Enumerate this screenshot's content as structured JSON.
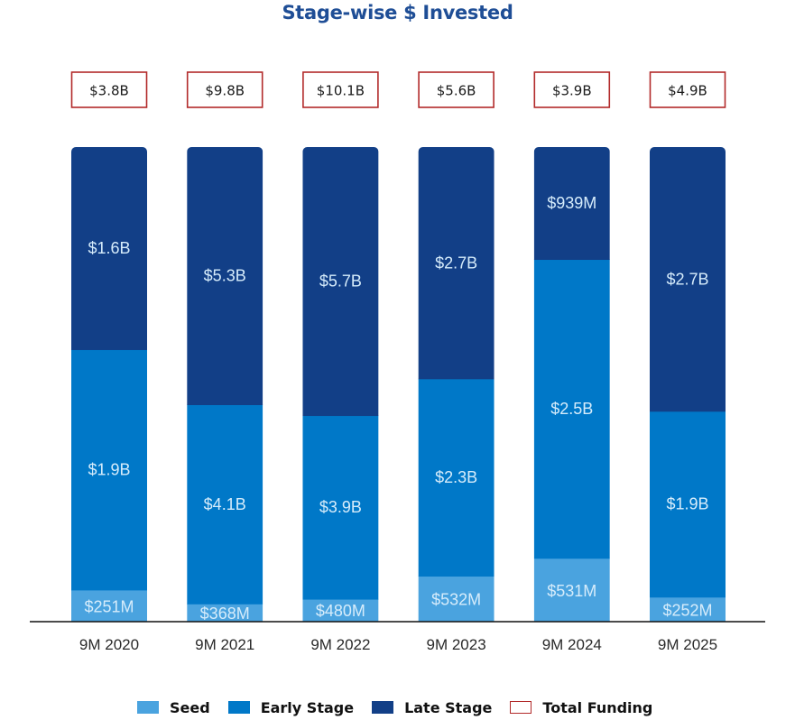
{
  "chart_data": {
    "type": "bar",
    "stacked": true,
    "normalized": true,
    "title": "Stage-wise $ Invested",
    "xlabel": "",
    "ylabel": "",
    "grid": false,
    "categories": [
      "9M 2020",
      "9M 2021",
      "9M 2022",
      "9M 2023",
      "9M 2024",
      "9M 2025"
    ],
    "series": [
      {
        "name": "Seed",
        "color": "#4aa3df",
        "values_usd_m": [
          251,
          368,
          480,
          532,
          531,
          252
        ],
        "labels": [
          "$251M",
          "$368M",
          "$480M",
          "$532M",
          "$531M",
          "$252M"
        ]
      },
      {
        "name": "Early Stage",
        "color": "#0078c8",
        "values_usd_m": [
          1900,
          4100,
          3900,
          2300,
          2500,
          1900
        ],
        "labels": [
          "$1.9B",
          "$4.1B",
          "$3.9B",
          "$2.3B",
          "$2.5B",
          "$1.9B"
        ]
      },
      {
        "name": "Late Stage",
        "color": "#123f87",
        "values_usd_m": [
          1600,
          5300,
          5700,
          2700,
          939,
          2700
        ],
        "labels": [
          "$1.6B",
          "$5.3B",
          "$5.7B",
          "$2.7B",
          "$939M",
          "$2.7B"
        ]
      }
    ],
    "totals": {
      "name": "Total Funding",
      "border_color": "#b22a2a",
      "values_usd_b": [
        3.8,
        9.8,
        10.1,
        5.6,
        3.9,
        4.9
      ],
      "labels": [
        "$3.8B",
        "$9.8B",
        "$10.1B",
        "$5.6B",
        "$3.9B",
        "$4.9B"
      ]
    },
    "legend": {
      "position": "bottom",
      "entries": [
        "Seed",
        "Early Stage",
        "Late Stage",
        "Total Funding"
      ]
    }
  },
  "colors": {
    "title": "#1f4e96",
    "axis": "#111111"
  }
}
